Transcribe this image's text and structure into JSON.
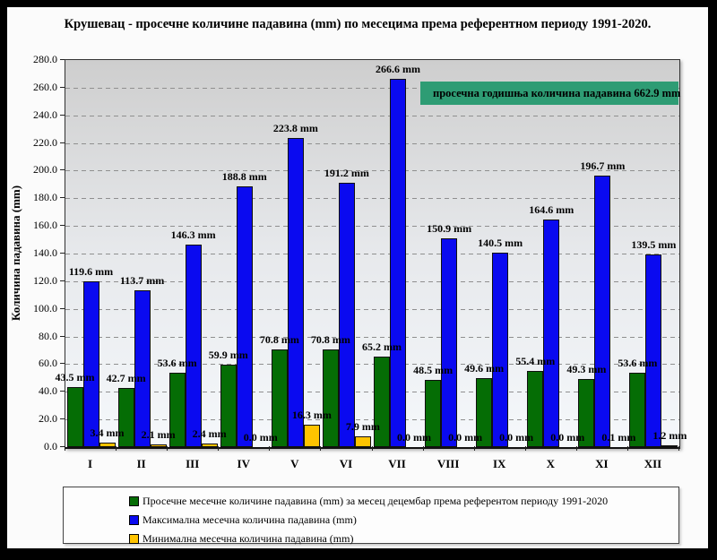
{
  "chart_data": {
    "type": "bar",
    "title": "Крушевац - просечне  количине падавина (mm) по месецима  према  референтном периоду 1991-2020.",
    "ylabel": "Количина падавина (mm)",
    "xlabel": "",
    "categories": [
      "I",
      "II",
      "III",
      "IV",
      "V",
      "VI",
      "VII",
      "VIII",
      "IX",
      "X",
      "XI",
      "XII"
    ],
    "series": [
      {
        "name": "Просечне месечне количине падавина (mm) за месец децембар према референтом  периоду 1991-2020",
        "color": "#056d05",
        "values": [
          43.5,
          42.7,
          53.6,
          59.9,
          70.8,
          70.8,
          65.2,
          48.5,
          49.6,
          55.4,
          49.3,
          53.6
        ]
      },
      {
        "name": "Максимална  месечна количина падавина (mm)",
        "color": "#0a0af0",
        "values": [
          119.6,
          113.7,
          146.3,
          188.8,
          223.8,
          191.2,
          266.6,
          150.9,
          140.5,
          164.6,
          196.7,
          139.5
        ]
      },
      {
        "name": "Минимална месечна количина падавина (mm)",
        "color": "#ffc400",
        "values": [
          3.4,
          2.1,
          2.4,
          0.0,
          16.3,
          7.9,
          0.0,
          0.0,
          0.0,
          0.0,
          0.1,
          1.2
        ]
      }
    ],
    "ylim": [
      0,
      280
    ],
    "ytick_step": 20,
    "value_suffix": " mm",
    "grid": "dashed horizontal",
    "legend_position": "bottom",
    "annotation": {
      "text": "просечна годишња количина падавина 662.9  mm",
      "value": "662.9",
      "bg": "#2e9c74"
    }
  }
}
